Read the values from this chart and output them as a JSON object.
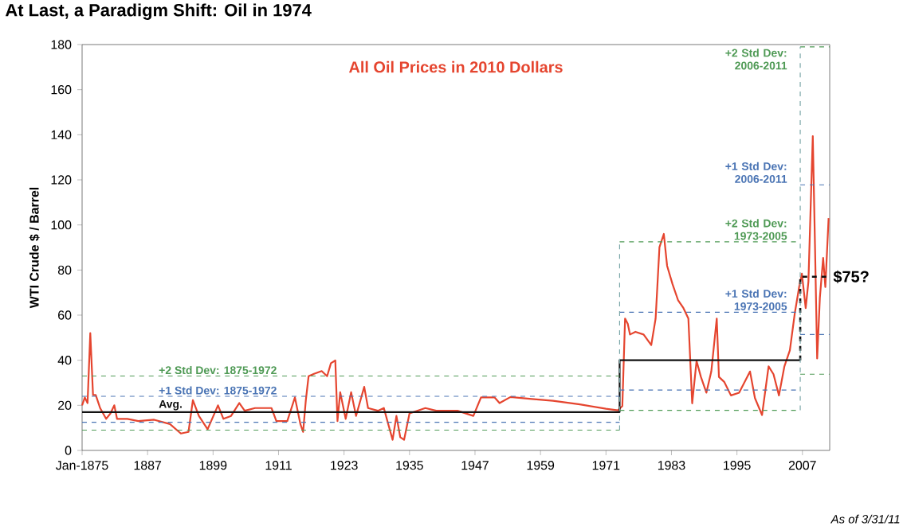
{
  "chart_data": {
    "type": "line",
    "title": "At Last, a Paradigm Shift:  Oil in 1974",
    "subtitle": "All Oil Prices in 2010 Dollars",
    "ylabel": "WTI Crude $ / Barrel",
    "xlim": [
      1875,
      2012
    ],
    "ylim": [
      0,
      180
    ],
    "xticks": [
      {
        "value": 1875,
        "label": "Jan-1875"
      },
      1887,
      1899,
      1911,
      1923,
      1935,
      1947,
      1959,
      1971,
      1983,
      1995,
      2007
    ],
    "yticks": [
      0,
      20,
      40,
      60,
      80,
      100,
      120,
      140,
      160,
      180
    ],
    "series": [
      {
        "color": "#e5452f",
        "line_style": "solid",
        "x": [
          1875,
          1875.5,
          1876,
          1876.5,
          1877,
          1877.5,
          1878.3,
          1879.4,
          1880.2,
          1880.9,
          1881.4,
          1883.3,
          1885.3,
          1888.2,
          1891.1,
          1893.1,
          1894.5,
          1895.3,
          1896.4,
          1898,
          1899.9,
          1900.9,
          1902.3,
          1903.8,
          1904.8,
          1906.7,
          1909.7,
          1910.6,
          1912.6,
          1914,
          1915,
          1915.5,
          1916,
          1916.5,
          1917.5,
          1918.9,
          1919.9,
          1920.6,
          1921.4,
          1921.8,
          1922.3,
          1923.3,
          1924.3,
          1925.2,
          1926.7,
          1927.4,
          1929.2,
          1930.3,
          1931.1,
          1931.9,
          1932.6,
          1933.3,
          1934,
          1935,
          1937.9,
          1939.9,
          1943.8,
          1946.7,
          1948.1,
          1950.6,
          1951.5,
          1953.5,
          1957.4,
          1961.3,
          1966.2,
          1971,
          1973.2,
          1974,
          1974.5,
          1975,
          1975.4,
          1976.4,
          1977.9,
          1979.3,
          1980.1,
          1980.8,
          1981.6,
          1982.2,
          1983.2,
          1984.2,
          1985.2,
          1986.1,
          1986.8,
          1987.6,
          1988.4,
          1989.4,
          1990.3,
          1991.3,
          1991.7,
          1992.7,
          1993.9,
          1995.4,
          1997.4,
          1998.3,
          1999.6,
          2000.8,
          2001.7,
          2002.7,
          2003.7,
          2004.7,
          2005.6,
          2006.4,
          2006.9,
          2007.6,
          2008.1,
          2008.9,
          2009.3,
          2009.7,
          2010.2,
          2010.8,
          2011.2,
          2011.8
        ],
        "values": [
          20,
          23.5,
          21,
          52,
          24.6,
          24.6,
          18.8,
          14,
          16.4,
          20,
          14,
          14,
          13,
          13.6,
          11.7,
          7.5,
          8.2,
          22.3,
          15.3,
          9.4,
          20,
          14,
          15.3,
          21,
          17.6,
          18.8,
          18.8,
          13,
          13,
          23.5,
          11.7,
          8.2,
          22.3,
          32.9,
          34,
          35.2,
          32.9,
          38.7,
          39.9,
          13,
          25.8,
          14,
          25.8,
          15.3,
          28.2,
          18.8,
          17.6,
          18.8,
          11.7,
          4.7,
          15.3,
          5.9,
          4.7,
          16.4,
          18.8,
          17.6,
          17.6,
          15.3,
          23.5,
          23.5,
          21,
          23.7,
          22.8,
          22,
          20.4,
          18.5,
          17.8,
          19.7,
          58.5,
          56.1,
          51.4,
          52.6,
          51.4,
          46.7,
          58.5,
          90.1,
          96,
          81.9,
          73.7,
          66.7,
          63.1,
          58.5,
          20.9,
          39.7,
          32.6,
          25.6,
          35,
          58.5,
          32.6,
          30.3,
          24.4,
          25.6,
          35,
          23.2,
          15.7,
          37.3,
          33.8,
          24.4,
          37.3,
          44.4,
          60.8,
          72.5,
          78.4,
          63.1,
          74.9,
          139.4,
          91.3,
          40.8,
          67.8,
          85.4,
          72.5,
          103
        ]
      },
      {
        "name": "Avg.",
        "color": "#111111",
        "line_style": "solid",
        "x": [
          1875,
          1973.5,
          1973.5,
          2006.6
        ],
        "values": [
          17,
          17,
          40,
          40
        ]
      },
      {
        "color": "#111111",
        "line_style": "dashed",
        "x": [
          2006.6,
          2006.6,
          2012
        ],
        "values": [
          40,
          77,
          77
        ]
      },
      {
        "name": "+2 Std Dev:  1875-1972",
        "color": "#4f9a55",
        "line_style": "dashed",
        "x": [
          1875,
          1973.5
        ],
        "values": [
          33,
          33
        ]
      },
      {
        "name": "+1 Std Dev:  1875-1972",
        "color": "#4a74b4",
        "line_style": "dashed",
        "x": [
          1875,
          1973.5
        ],
        "values": [
          24,
          24
        ]
      },
      {
        "color": "#4a74b4",
        "line_style": "dashed",
        "x": [
          1875,
          1973.5
        ],
        "values": [
          12.5,
          12.5
        ]
      },
      {
        "color": "#4f9a55",
        "line_style": "dashed",
        "x": [
          1875,
          1973.5
        ],
        "values": [
          9,
          9
        ]
      },
      {
        "name": "+2 Std Dev: 1973-2005",
        "color": "#4f9a55",
        "line_style": "dashed",
        "x": [
          1973.5,
          2006.6
        ],
        "values": [
          92.5,
          92.5
        ]
      },
      {
        "name": "+1 Std Dev: 1973-2005",
        "color": "#4a74b4",
        "line_style": "dashed",
        "x": [
          1973.5,
          2006.6
        ],
        "values": [
          61.3,
          61.3
        ]
      },
      {
        "color": "#4a74b4",
        "line_style": "dashed",
        "x": [
          1973.5,
          2006.6
        ],
        "values": [
          26.8,
          26.8
        ]
      },
      {
        "color": "#4f9a55",
        "line_style": "dashed",
        "x": [
          1973.5,
          2006.6
        ],
        "values": [
          17.8,
          17.8
        ]
      },
      {
        "name": "+2 Std Dev: 2006-2011",
        "color": "#4f9a55",
        "line_style": "dashed",
        "x": [
          2006.6,
          2012
        ],
        "values": [
          179,
          179
        ]
      },
      {
        "name": "+1 Std Dev: 2006-2011",
        "color": "#4a74b4",
        "line_style": "dashed",
        "x": [
          2006.6,
          2012
        ],
        "values": [
          117.8,
          117.8
        ]
      },
      {
        "color": "#4a74b4",
        "line_style": "dashed",
        "x": [
          2006.6,
          2012
        ],
        "values": [
          51.4,
          51.4
        ]
      },
      {
        "color": "#4f9a55",
        "line_style": "dashed",
        "x": [
          2006.6,
          2012
        ],
        "values": [
          33.8,
          33.8
        ]
      },
      {
        "color": "#7aa6a8",
        "line_style": "dashed",
        "x": [
          1973.5,
          1973.5
        ],
        "values": [
          9,
          92.5
        ]
      },
      {
        "color": "#7aa6a8",
        "line_style": "dashed",
        "x": [
          2006.6,
          2006.6
        ],
        "values": [
          17.8,
          179
        ]
      }
    ],
    "annotations": [
      {
        "text": "$75?",
        "x": 2012,
        "y": 77
      },
      "As of 3/31/11"
    ]
  }
}
